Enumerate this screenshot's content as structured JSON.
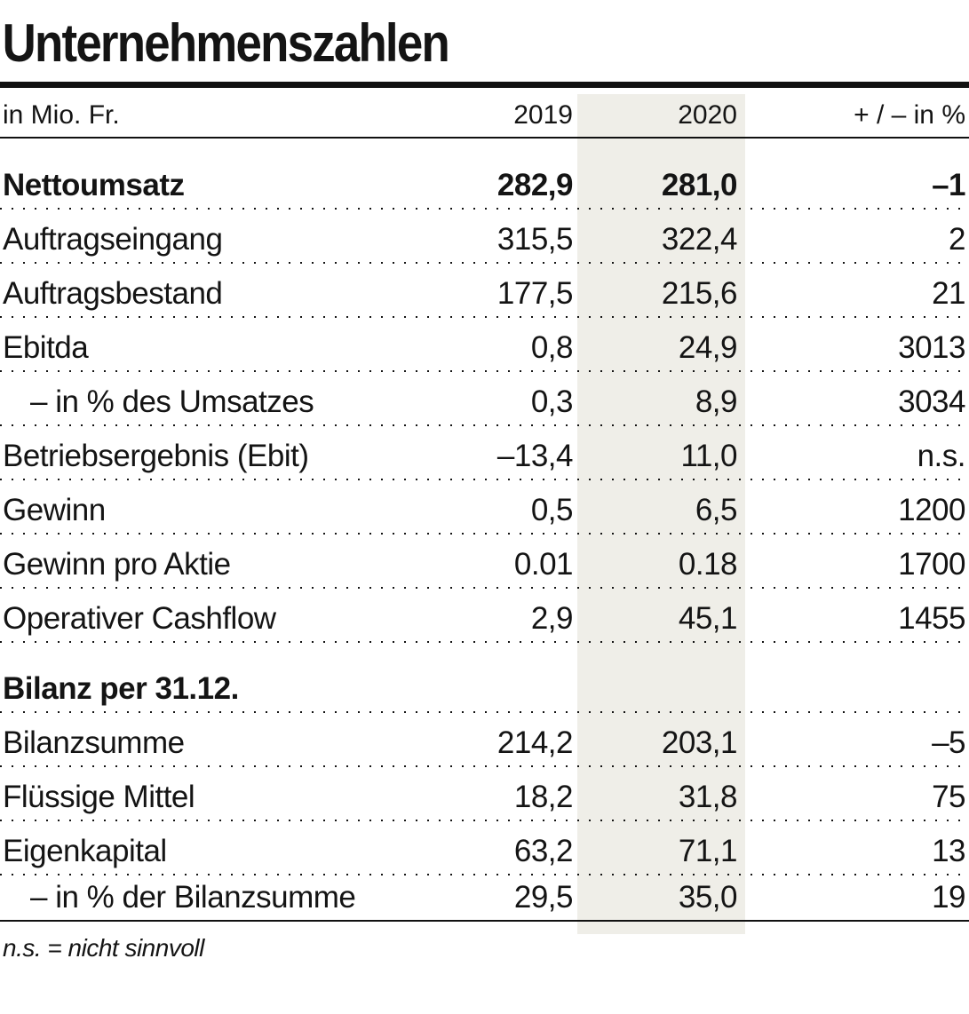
{
  "title": "Unternehmenszahlen",
  "chart_data": {
    "type": "table",
    "unit_label": "in Mio. Fr.",
    "columns": [
      "2019",
      "2020",
      "+ / – in %"
    ],
    "highlighted_column": "2020",
    "rows": [
      {
        "label": "Nettoumsatz",
        "v2019": "282,9",
        "v2020": "281,0",
        "change": "–1",
        "style": "bold"
      },
      {
        "label": "Auftragseingang",
        "v2019": "315,5",
        "v2020": "322,4",
        "change": "2",
        "style": ""
      },
      {
        "label": "Auftragsbestand",
        "v2019": "177,5",
        "v2020": "215,6",
        "change": "21",
        "style": ""
      },
      {
        "label": "Ebitda",
        "v2019": "0,8",
        "v2020": "24,9",
        "change": "3013",
        "style": ""
      },
      {
        "label": "– in % des Umsatzes",
        "v2019": "0,3",
        "v2020": "8,9",
        "change": "3034",
        "style": "indent"
      },
      {
        "label": "Betriebsergebnis (Ebit)",
        "v2019": "–13,4",
        "v2020": "11,0",
        "change": "n.s.",
        "style": ""
      },
      {
        "label": "Gewinn",
        "v2019": "0,5",
        "v2020": "6,5",
        "change": "1200",
        "style": ""
      },
      {
        "label": "Gewinn pro Aktie",
        "v2019": "0.01",
        "v2020": "0.18",
        "change": "1700",
        "style": ""
      },
      {
        "label": "Operativer Cashflow",
        "v2019": "2,9",
        "v2020": "45,1",
        "change": "1455",
        "style": ""
      },
      {
        "label": "Bilanz per 31.12.",
        "v2019": "",
        "v2020": "",
        "change": "",
        "style": "section"
      },
      {
        "label": "Bilanzsumme",
        "v2019": "214,2",
        "v2020": "203,1",
        "change": "–5",
        "style": ""
      },
      {
        "label": "Flüssige Mittel",
        "v2019": "18,2",
        "v2020": "31,8",
        "change": "75",
        "style": ""
      },
      {
        "label": "Eigenkapital",
        "v2019": "63,2",
        "v2020": "71,1",
        "change": "13",
        "style": ""
      },
      {
        "label": "– in % der Bilanzsumme",
        "v2019": "29,5",
        "v2020": "35,0",
        "change": "19",
        "style": "indent"
      }
    ]
  },
  "footnote": "n.s. = nicht sinnvoll",
  "colors": {
    "text": "#141414",
    "rule": "#111111",
    "highlight_column": "#efeee8"
  }
}
